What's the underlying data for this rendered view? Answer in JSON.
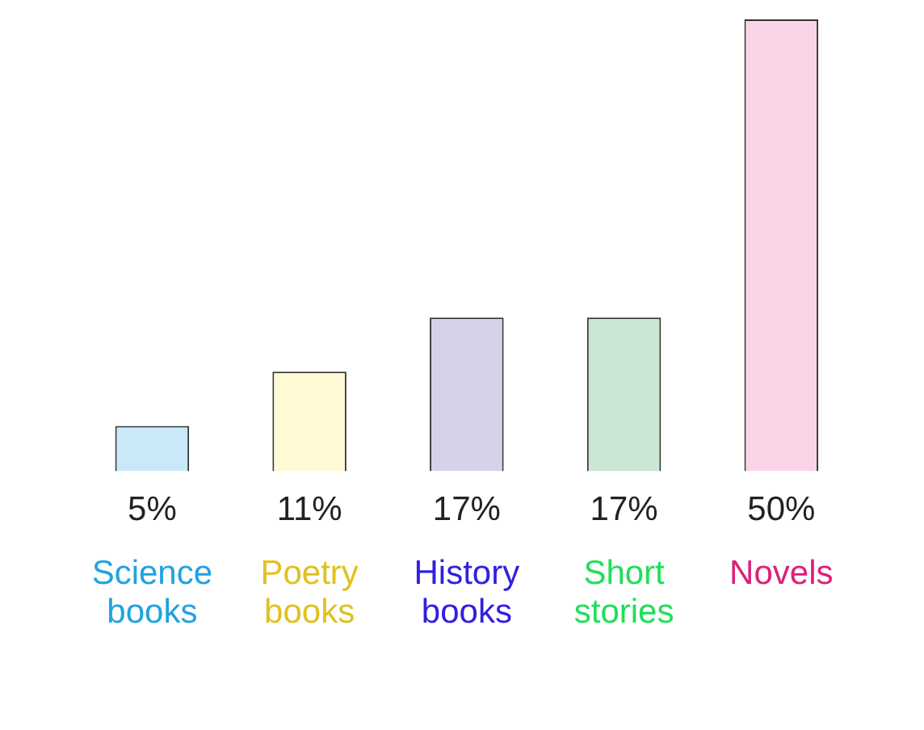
{
  "chart_data": {
    "type": "bar",
    "categories": [
      "Science books",
      "Poetry books",
      "History books",
      "Short stories",
      "Novels"
    ],
    "values": [
      5,
      11,
      17,
      17,
      50
    ],
    "colors": [
      "#c9e9f8",
      "#fff9d6",
      "#d5d3ea",
      "#cce6d4",
      "#fad4e6"
    ],
    "value_labels": [
      "5%",
      "11%",
      "17%",
      "17%",
      "50%"
    ],
    "grid": false,
    "legend": false
  }
}
